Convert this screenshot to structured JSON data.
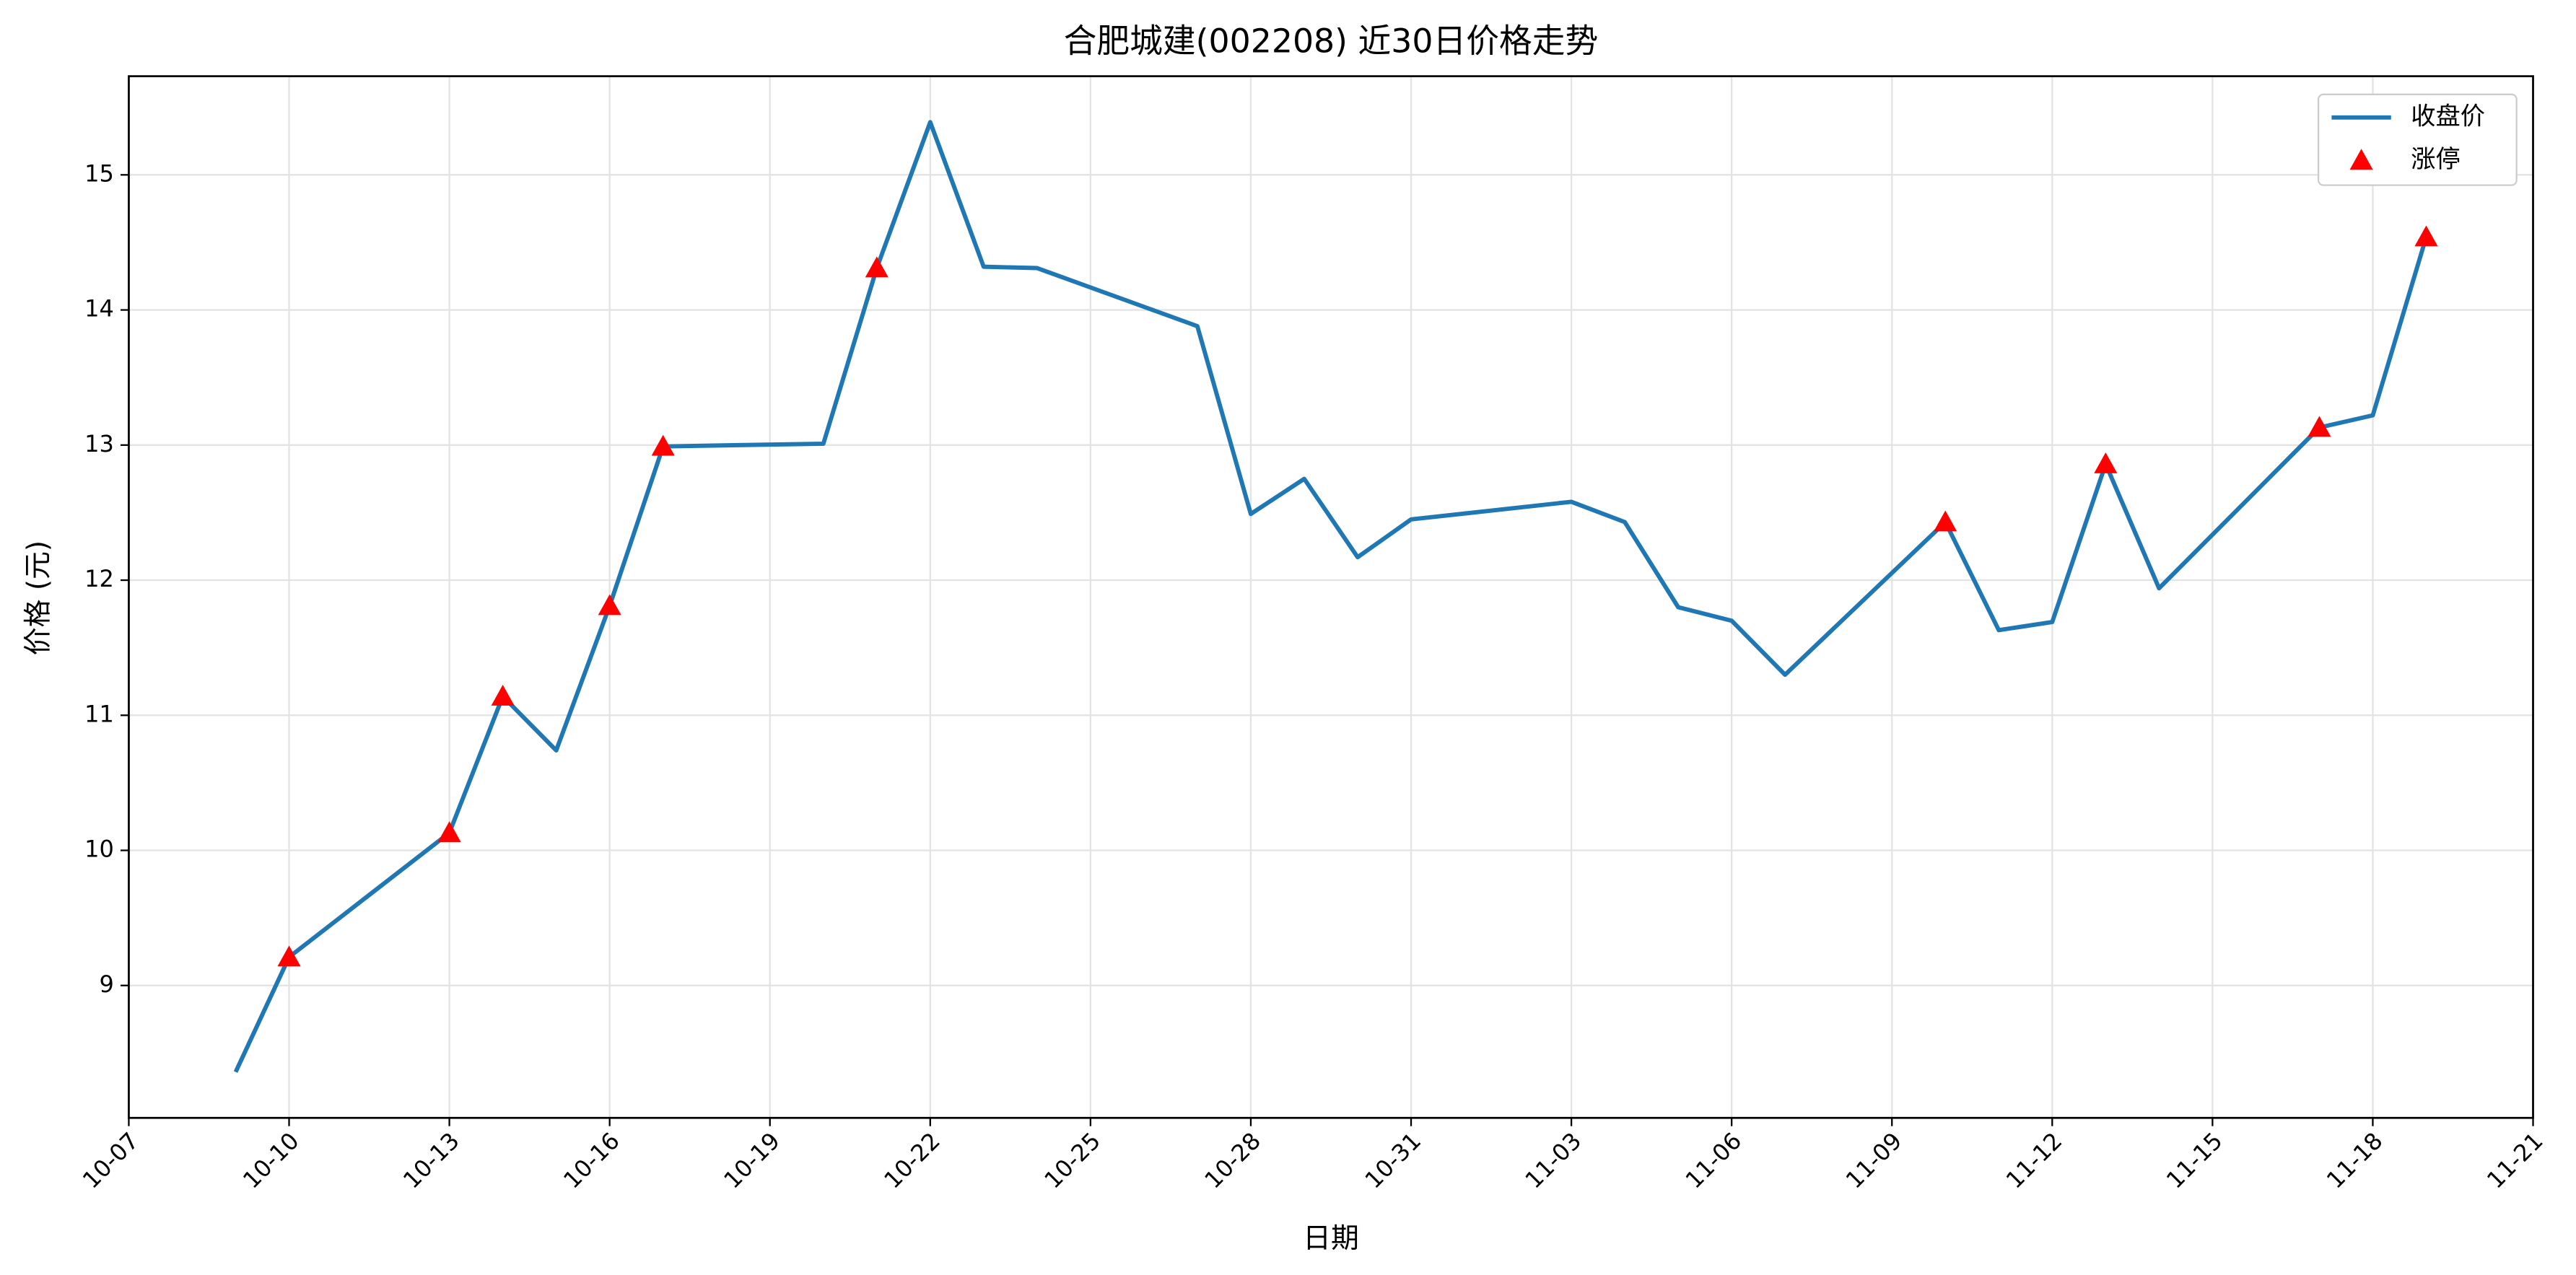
{
  "chart_data": {
    "type": "line",
    "title": "合肥城建(002208) 近30日价格走势",
    "x_label": "日期",
    "y_label": "价格 (元)",
    "x": [
      "10-09",
      "10-10",
      "10-13",
      "10-14",
      "10-15",
      "10-16",
      "10-17",
      "10-20",
      "10-21",
      "10-22",
      "10-23",
      "10-24",
      "10-27",
      "10-28",
      "10-29",
      "10-30",
      "10-31",
      "11-03",
      "11-04",
      "11-05",
      "11-06",
      "11-07",
      "11-10",
      "11-11",
      "11-12",
      "11-13",
      "11-14",
      "11-17",
      "11-18",
      "11-19"
    ],
    "series": [
      {
        "name": "收盘价",
        "color": "#1f77b4",
        "type": "line",
        "values": [
          8.36,
          9.21,
          10.13,
          11.14,
          10.74,
          11.81,
          12.99,
          13.01,
          14.31,
          15.39,
          14.32,
          14.31,
          13.88,
          12.49,
          12.75,
          12.17,
          12.45,
          12.58,
          12.43,
          11.8,
          11.7,
          11.3,
          12.43,
          11.63,
          11.69,
          12.86,
          11.94,
          13.13,
          13.22,
          14.54
        ]
      },
      {
        "name": "涨停",
        "color": "#ff0000",
        "type": "scatter",
        "values": [
          null,
          9.21,
          10.13,
          11.14,
          null,
          11.81,
          12.99,
          null,
          14.31,
          null,
          null,
          null,
          null,
          null,
          null,
          null,
          null,
          null,
          null,
          null,
          null,
          null,
          12.43,
          null,
          null,
          12.86,
          null,
          13.13,
          null,
          14.54
        ]
      }
    ],
    "xlim": [
      "10-07",
      "11-21"
    ],
    "xticks": [
      "10-07",
      "10-10",
      "10-13",
      "10-16",
      "10-19",
      "10-22",
      "10-25",
      "10-28",
      "10-31",
      "11-03",
      "11-06",
      "11-09",
      "11-12",
      "11-15",
      "11-18",
      "11-21"
    ],
    "ylim": [
      8.02,
      15.73
    ],
    "yticks": [
      9,
      10,
      11,
      12,
      13,
      14,
      15
    ],
    "grid": true,
    "legend": "upper right"
  }
}
